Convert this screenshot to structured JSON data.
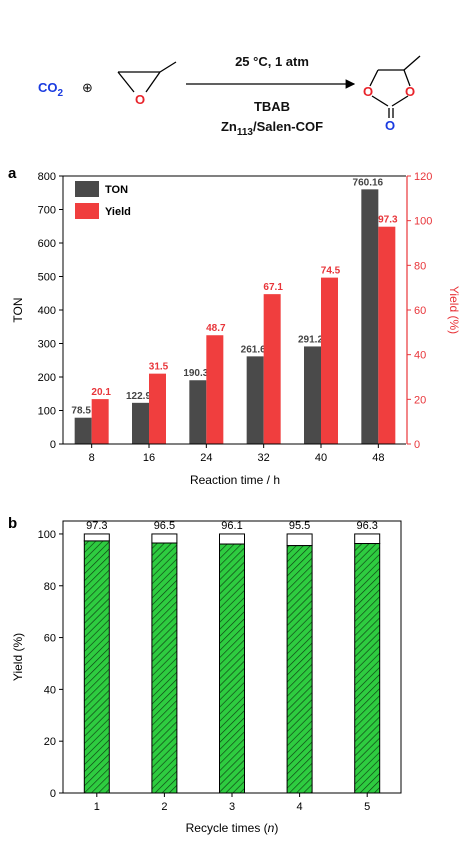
{
  "scheme": {
    "reactant1": "CO",
    "reactant1_sub": "2",
    "plus": "⊕",
    "conditions_top": "25 °C, 1 atm",
    "catalyst_line1": "TBAB",
    "catalyst_line2_pre": "Zn",
    "catalyst_line2_sub": "113",
    "catalyst_line2_post": "/Salen-COF",
    "epoxide_oxygen": "O",
    "product_o1": "O",
    "product_o2": "O",
    "product_o3": "O"
  },
  "chart_data": [
    {
      "panel": "a",
      "type": "bar",
      "categories": [
        "8",
        "16",
        "24",
        "32",
        "40",
        "48"
      ],
      "xlabel": "Reaction time / h",
      "ylabel": "TON",
      "y2label": "Yield (%)",
      "ylim": [
        0,
        800
      ],
      "y2lim": [
        0,
        120
      ],
      "yticks": [
        0,
        100,
        200,
        300,
        400,
        500,
        600,
        700,
        800
      ],
      "y2ticks": [
        0,
        20,
        40,
        60,
        80,
        100,
        120
      ],
      "legend_placement": "top-left",
      "series": [
        {
          "name": "TON",
          "axis": "left",
          "color": "#4a4a4a",
          "values": [
            78.5,
            122.9,
            190.3,
            261.6,
            291.2,
            760.16
          ],
          "labels": [
            "78.5",
            "122.9",
            "190.3",
            "261.6",
            "291.2",
            "760.16"
          ]
        },
        {
          "name": "Yield",
          "axis": "right",
          "color": "#f03e3e",
          "values": [
            20.1,
            31.5,
            48.7,
            67.1,
            74.5,
            97.3
          ],
          "labels": [
            "20.1",
            "31.5",
            "48.7",
            "67.1",
            "74.5",
            "97.3"
          ]
        }
      ]
    },
    {
      "panel": "b",
      "type": "bar",
      "categories": [
        "1",
        "2",
        "3",
        "4",
        "5"
      ],
      "xlabel_pre": "Recycle times (",
      "xlabel_var": "n",
      "xlabel_post": ")",
      "ylabel": "Yield (%)",
      "ylim": [
        0,
        105
      ],
      "yticks": [
        0,
        20,
        40,
        60,
        80,
        100
      ],
      "total": 100,
      "bar_color": "#2ecc40",
      "values": [
        97.3,
        96.5,
        96.1,
        95.5,
        96.3
      ],
      "labels": [
        "97.3",
        "96.5",
        "96.1",
        "95.5",
        "96.3"
      ]
    }
  ]
}
